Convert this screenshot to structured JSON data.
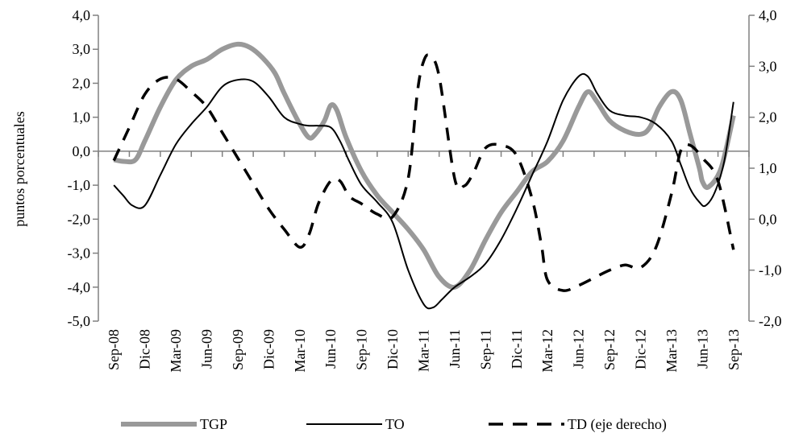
{
  "chart_data": {
    "type": "line",
    "title": "",
    "ylabel": "puntos porcentuales",
    "ylabel_right": "",
    "xlabel": "",
    "categories": [
      "Sep-08",
      "Dic-08",
      "Mar-09",
      "Jun-09",
      "Sep-09",
      "Dic-09",
      "Mar-10",
      "Jun-10",
      "Sep-10",
      "Dic-10",
      "Mar-11",
      "Jun-11",
      "Sep-11",
      "Dic-11",
      "Mar-12",
      "Jun-12",
      "Sep-12",
      "Dic-12",
      "Mar-13",
      "Jun-13",
      "Sep-13"
    ],
    "ylim": [
      -5,
      4
    ],
    "yticks": [
      "4,0",
      "3,0",
      "2,0",
      "1,0",
      "0,0",
      "-1,0",
      "-2,0",
      "-3,0",
      "-4,0",
      "-5,0"
    ],
    "ylim_right": [
      -2,
      4
    ],
    "yticks_right": [
      "4,0",
      "3,0",
      "2,0",
      "1,0",
      "0,0",
      "-1,0",
      "-2,0"
    ],
    "grid": false,
    "zero_line": true,
    "legend_position": "bottom",
    "series": [
      {
        "name": "TGP",
        "axis": "left",
        "style": "thick-gray",
        "color": "#999999",
        "x": [
          0,
          0.35,
          0.7,
          1,
          1.5,
          2,
          2.5,
          3,
          3.5,
          4,
          4.4,
          4.8,
          5.2,
          5.5,
          6,
          6.3,
          6.5,
          6.8,
          7,
          7.2,
          7.5,
          8,
          8.5,
          9,
          9.5,
          10,
          10.5,
          11,
          11.5,
          12,
          12.5,
          13,
          13.5,
          14,
          14.5,
          15,
          15.3,
          15.6,
          16,
          16.5,
          17,
          17.3,
          17.6,
          18,
          18.3,
          18.6,
          18.9,
          19,
          19.2,
          19.6,
          20
        ],
        "values": [
          -0.25,
          -0.3,
          -0.25,
          0.3,
          1.3,
          2.1,
          2.5,
          2.7,
          3.0,
          3.15,
          3.05,
          2.75,
          2.3,
          1.7,
          0.8,
          0.4,
          0.5,
          0.9,
          1.35,
          1.2,
          0.4,
          -0.6,
          -1.3,
          -1.8,
          -2.3,
          -2.9,
          -3.7,
          -4.0,
          -3.5,
          -2.6,
          -1.8,
          -1.2,
          -0.6,
          -0.3,
          0.3,
          1.3,
          1.75,
          1.45,
          0.9,
          0.6,
          0.5,
          0.7,
          1.3,
          1.75,
          1.5,
          0.5,
          -0.5,
          -0.9,
          -1.05,
          -0.5,
          1.05
        ]
      },
      {
        "name": "TO",
        "axis": "left",
        "style": "thin-black",
        "color": "#000000",
        "x": [
          0,
          0.3,
          0.6,
          1,
          1.5,
          2,
          2.5,
          3,
          3.5,
          4,
          4.5,
          5,
          5.5,
          6,
          6.3,
          6.6,
          7,
          7.3,
          7.6,
          8,
          8.5,
          9,
          9.5,
          10,
          10.3,
          10.6,
          11,
          11.5,
          12,
          12.5,
          13,
          13.5,
          14,
          14.5,
          15,
          15.3,
          15.6,
          16,
          16.5,
          17,
          17.5,
          18,
          18.3,
          18.6,
          18.9,
          19.1,
          19.4,
          19.7,
          20
        ],
        "values": [
          -1.0,
          -1.3,
          -1.6,
          -1.6,
          -0.7,
          0.2,
          0.8,
          1.3,
          1.9,
          2.1,
          2.05,
          1.6,
          1.0,
          0.8,
          0.75,
          0.75,
          0.7,
          0.3,
          -0.3,
          -1.0,
          -1.5,
          -2.1,
          -3.5,
          -4.5,
          -4.6,
          -4.35,
          -4.0,
          -3.7,
          -3.3,
          -2.6,
          -1.7,
          -0.7,
          0.3,
          1.5,
          2.2,
          2.2,
          1.7,
          1.2,
          1.05,
          1.0,
          0.8,
          0.3,
          -0.4,
          -1.1,
          -1.5,
          -1.6,
          -1.2,
          -0.3,
          1.45
        ]
      },
      {
        "name": "TD (eje derecho)",
        "axis": "right",
        "style": "dashed-black",
        "color": "#000000",
        "x": [
          0,
          0.5,
          1,
          1.5,
          2,
          2.5,
          3,
          3.5,
          4,
          4.5,
          5,
          5.5,
          6,
          6.3,
          6.6,
          7,
          7.3,
          7.6,
          8,
          8.5,
          9,
          9.5,
          9.8,
          10,
          10.2,
          10.5,
          11,
          11.3,
          11.6,
          12,
          12.5,
          13,
          13.5,
          13.8,
          14,
          14.5,
          15,
          15.5,
          16,
          16.5,
          17,
          17.5,
          18,
          18.3,
          18.6,
          19,
          19.5,
          20
        ],
        "values": [
          1.15,
          1.8,
          2.45,
          2.75,
          2.75,
          2.5,
          2.2,
          1.7,
          1.2,
          0.7,
          0.2,
          -0.2,
          -0.55,
          -0.3,
          0.3,
          0.75,
          0.75,
          0.45,
          0.3,
          0.1,
          0.05,
          0.8,
          2.5,
          3.1,
          3.2,
          2.8,
          0.8,
          0.65,
          0.9,
          1.4,
          1.45,
          1.25,
          0.4,
          -0.5,
          -1.2,
          -1.4,
          -1.3,
          -1.15,
          -1.0,
          -0.9,
          -0.95,
          -0.55,
          0.5,
          1.35,
          1.45,
          1.2,
          0.75,
          -0.6
        ]
      }
    ]
  }
}
